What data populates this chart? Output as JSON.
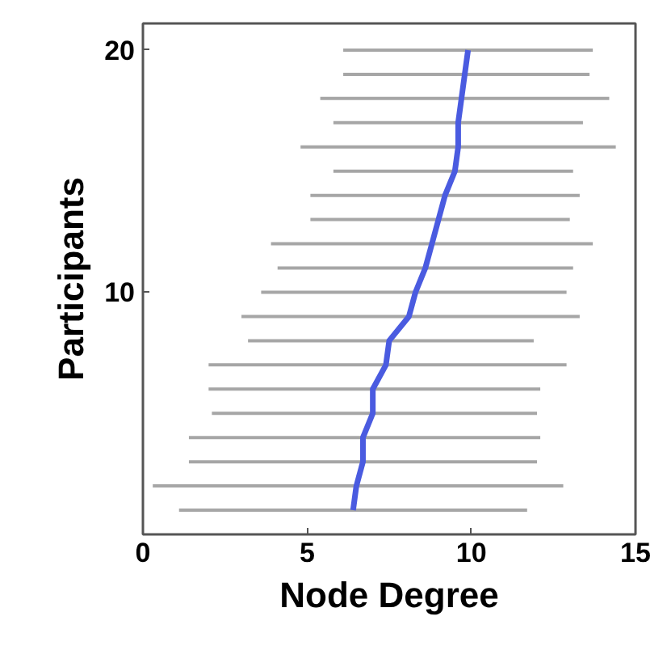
{
  "chart_data": {
    "type": "line",
    "xlabel": "Node Degree",
    "ylabel": "Participants",
    "xlim": [
      0,
      15
    ],
    "xticks": [
      0,
      5,
      10,
      15
    ],
    "ylim": [
      0,
      21.1
    ],
    "yticks": [
      10,
      20
    ],
    "grid": false,
    "marker": "none",
    "line_style": "solid",
    "series": [
      {
        "color": "#4a5be0",
        "x": [
          6.4,
          6.5,
          6.7,
          6.7,
          7.0,
          7.0,
          7.4,
          7.5,
          8.1,
          8.3,
          8.6,
          8.8,
          9.0,
          9.2,
          9.5,
          9.6,
          9.6,
          9.7,
          9.8,
          9.9
        ],
        "values": [
          1,
          2,
          3,
          4,
          5,
          6,
          7,
          8,
          9,
          10,
          11,
          12,
          13,
          14,
          15,
          16,
          17,
          18,
          19,
          20
        ],
        "xerrors": [
          [
            1.1,
            11.7
          ],
          [
            0.3,
            12.8
          ],
          [
            1.4,
            12.0
          ],
          [
            1.4,
            12.1
          ],
          [
            2.1,
            12.0
          ],
          [
            2.0,
            12.1
          ],
          [
            2.0,
            12.9
          ],
          [
            3.2,
            11.9
          ],
          [
            3.0,
            13.3
          ],
          [
            3.6,
            12.9
          ],
          [
            4.1,
            13.1
          ],
          [
            3.9,
            13.7
          ],
          [
            5.1,
            13.0
          ],
          [
            5.1,
            13.3
          ],
          [
            5.8,
            13.1
          ],
          [
            4.8,
            14.4
          ],
          [
            5.8,
            13.4
          ],
          [
            5.4,
            14.2
          ],
          [
            6.1,
            13.6
          ],
          [
            6.1,
            13.7
          ]
        ]
      }
    ]
  }
}
